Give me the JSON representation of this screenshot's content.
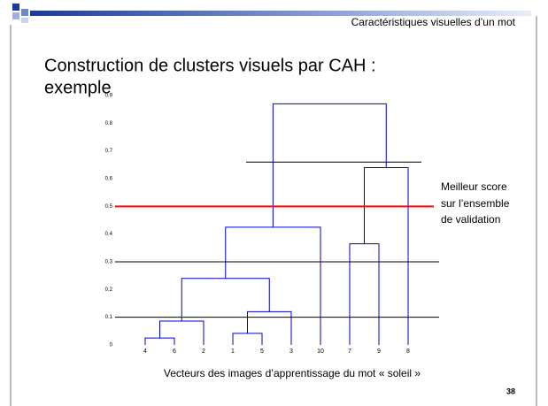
{
  "header": {
    "title": "Caractéristiques visuelles d’un mot"
  },
  "slide": {
    "title_lines": [
      "Construction de clusters visuels par CAH :",
      "exemple"
    ],
    "page_number": "38"
  },
  "chart_data": {
    "type": "dendrogram",
    "leaves": [
      "4",
      "6",
      "2",
      "1",
      "5",
      "3",
      "10",
      "7",
      "9",
      "8"
    ],
    "merges": [
      {
        "children": [
          0,
          1
        ],
        "height": 0.025
      },
      {
        "children": [
          10,
          2
        ],
        "height": 0.086
      },
      {
        "children": [
          3,
          4
        ],
        "height": 0.042
      },
      {
        "children": [
          12,
          5
        ],
        "height": 0.12
      },
      {
        "children": [
          11,
          13
        ],
        "height": 0.24
      },
      {
        "children": [
          14,
          6
        ],
        "height": 0.425
      },
      {
        "children": [
          7,
          8
        ],
        "height": 0.365
      },
      {
        "children": [
          16,
          9
        ],
        "height": 0.64
      },
      {
        "children": [
          15,
          17
        ],
        "height": 0.87
      }
    ],
    "color": "#0000cc",
    "cuts": [
      {
        "value": 0.66,
        "color": "#000000"
      },
      {
        "value": 0.5,
        "color": "#ff0000"
      },
      {
        "value": 0.3,
        "color": "#000000"
      },
      {
        "value": 0.1,
        "color": "#000000"
      }
    ],
    "ylim": [
      0,
      0.9
    ],
    "yticks": [
      0,
      0.1,
      0.2,
      0.3,
      0.4,
      0.5,
      0.6,
      0.7,
      0.8,
      0.9
    ],
    "annotation": [
      "Meilleur score",
      "sur l’ensemble",
      "de validation"
    ],
    "xlabel": "Vecteurs des images d’apprentissage du mot « soleil »"
  }
}
